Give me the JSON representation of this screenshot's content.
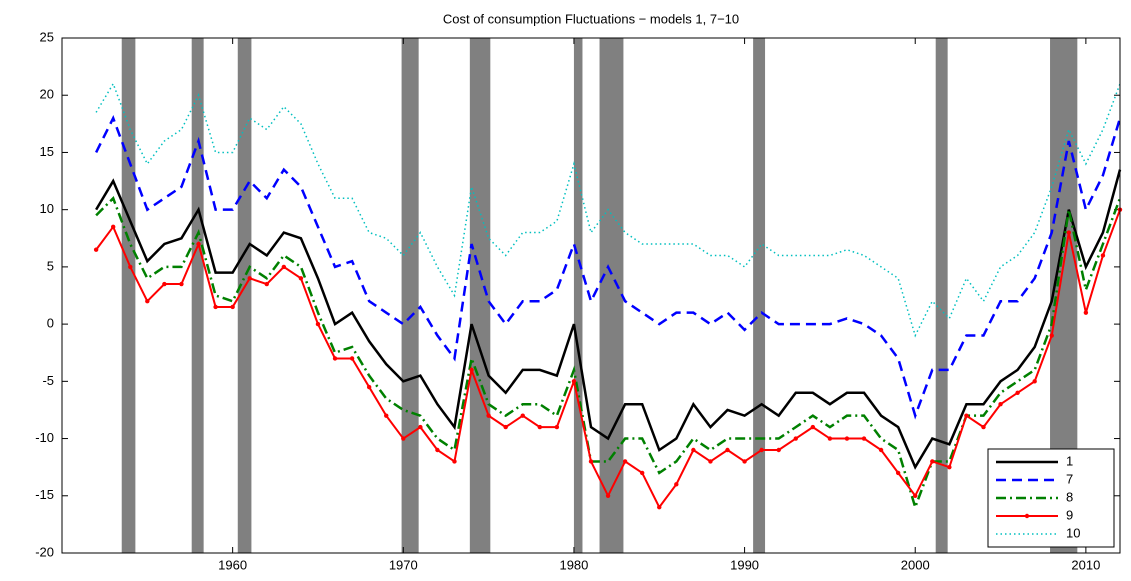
{
  "chart_data": {
    "type": "line",
    "title": "Cost of consumption Fluctuations − models 1, 7−10",
    "x": [
      1952,
      1953,
      1954,
      1955,
      1956,
      1957,
      1958,
      1959,
      1960,
      1961,
      1962,
      1963,
      1964,
      1965,
      1966,
      1967,
      1968,
      1969,
      1970,
      1971,
      1972,
      1973,
      1974,
      1975,
      1976,
      1977,
      1978,
      1979,
      1980,
      1981,
      1982,
      1983,
      1984,
      1985,
      1986,
      1987,
      1988,
      1989,
      1990,
      1991,
      1992,
      1993,
      1994,
      1995,
      1996,
      1997,
      1998,
      1999,
      2000,
      2001,
      2002,
      2003,
      2004,
      2005,
      2006,
      2007,
      2008,
      2009,
      2010,
      2011,
      2012
    ],
    "series": [
      {
        "name": "1",
        "color": "#000000",
        "linestyle": "-",
        "width": 2.5,
        "values": [
          10,
          12.5,
          9,
          5.5,
          7,
          7.5,
          10,
          4.5,
          4.5,
          7,
          6,
          8,
          7.5,
          4,
          0,
          1,
          -1.5,
          -3.5,
          -5,
          -4.5,
          -7,
          -9,
          0,
          -4.5,
          -6,
          -4,
          -4,
          -4.5,
          0,
          -9,
          -10,
          -7,
          -7,
          -11,
          -10,
          -7,
          -9,
          -7.5,
          -8,
          -7,
          -8,
          -6,
          -6,
          -7,
          -6,
          -6,
          -8,
          -9,
          -12.5,
          -10,
          -10.5,
          -7,
          -7,
          -5,
          -4,
          -2,
          2,
          10,
          5,
          8,
          13.5
        ]
      },
      {
        "name": "7",
        "color": "#0000ff",
        "linestyle": "--",
        "width": 2.5,
        "values": [
          15,
          18,
          14,
          10,
          11,
          12,
          16,
          10,
          10,
          12.5,
          11,
          13.5,
          12,
          8.5,
          5,
          5.5,
          2,
          1,
          0,
          1.5,
          -1,
          -3,
          7,
          2,
          0,
          2,
          2,
          3,
          7,
          2,
          5,
          2,
          1,
          0,
          1,
          1,
          0,
          1,
          -0.5,
          1,
          0,
          0,
          0,
          0,
          0.5,
          0,
          -1,
          -3,
          -8,
          -4,
          -4,
          -1,
          -1,
          2,
          2,
          4,
          8,
          16,
          10,
          13,
          18
        ]
      },
      {
        "name": "8",
        "color": "#008000",
        "linestyle": "-.",
        "width": 2.5,
        "values": [
          9.5,
          11,
          7,
          4,
          5,
          5,
          8,
          2.5,
          2,
          5,
          4,
          6,
          5,
          1,
          -2.5,
          -2,
          -4.5,
          -6.5,
          -7.5,
          -8,
          -10,
          -11,
          -3,
          -7,
          -8,
          -7,
          -7,
          -8,
          -4,
          -12,
          -12,
          -10,
          -10,
          -13,
          -12,
          -10,
          -11,
          -10,
          -10,
          -10,
          -10,
          -9,
          -8,
          -9,
          -8,
          -8,
          -10,
          -11,
          -16,
          -12,
          -12,
          -8,
          -8,
          -6,
          -5,
          -4,
          0,
          10,
          3,
          7,
          11
        ]
      },
      {
        "name": "9",
        "color": "#ff0000",
        "linestyle": "-",
        "marker": ".",
        "width": 2,
        "values": [
          6.5,
          8.5,
          5,
          2,
          3.5,
          3.5,
          7,
          1.5,
          1.5,
          4,
          3.5,
          5,
          4,
          0,
          -3,
          -3,
          -5.5,
          -8,
          -10,
          -9,
          -11,
          -12,
          -4,
          -8,
          -9,
          -8,
          -9,
          -9,
          -5,
          -12,
          -15,
          -12,
          -13,
          -16,
          -14,
          -11,
          -12,
          -11,
          -12,
          -11,
          -11,
          -10,
          -9,
          -10,
          -10,
          -10,
          -11,
          -13,
          -15,
          -12,
          -12.5,
          -8,
          -9,
          -7,
          -6,
          -5,
          -1,
          8,
          1,
          6,
          10
        ]
      },
      {
        "name": "10",
        "color": "#00bfbf",
        "linestyle": ":",
        "width": 1.5,
        "values": [
          18.5,
          21,
          17,
          14,
          16,
          17,
          20,
          15,
          15,
          18,
          17,
          19,
          17.5,
          14,
          11,
          11,
          8,
          7.5,
          6,
          8,
          5,
          2.5,
          12,
          7.5,
          6,
          8,
          8,
          9,
          14,
          8,
          10,
          8,
          7,
          7,
          7,
          7,
          6,
          6,
          5,
          7,
          6,
          6,
          6,
          6,
          6.5,
          6,
          5,
          4,
          -1,
          2,
          0.5,
          4,
          2,
          5,
          6,
          8,
          12,
          17,
          14,
          17,
          21
        ]
      }
    ],
    "bands": [
      [
        1953.5,
        1954.3
      ],
      [
        1957.6,
        1958.3
      ],
      [
        1960.3,
        1961.1
      ],
      [
        1969.9,
        1970.9
      ],
      [
        1973.9,
        1975.1
      ],
      [
        1980.0,
        1980.5
      ],
      [
        1981.5,
        1982.9
      ],
      [
        1990.5,
        1991.2
      ],
      [
        2001.2,
        2001.9
      ],
      [
        2007.9,
        2009.5
      ]
    ],
    "band_color": "#808080",
    "xlim": [
      1950,
      2012
    ],
    "xticks": [
      1960,
      1970,
      1980,
      1990,
      2000,
      2010
    ],
    "ylim": [
      -20,
      25
    ],
    "yticks": [
      -20,
      -15,
      -10,
      -5,
      0,
      5,
      10,
      15,
      20,
      25
    ],
    "legend": "lower right"
  }
}
